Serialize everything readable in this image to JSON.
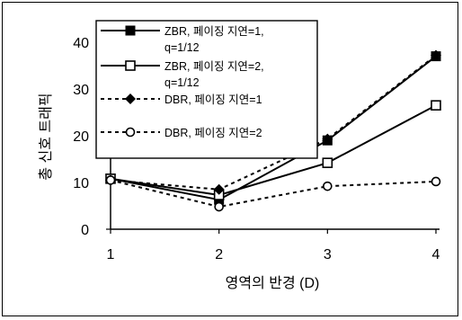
{
  "chart_data": {
    "type": "line",
    "title": "",
    "xlabel": "영역의 반경 (D)",
    "ylabel": "총 신호 트래픽",
    "x": [
      1,
      2,
      3,
      4
    ],
    "xlim": [
      1,
      4
    ],
    "ylim": [
      0,
      40
    ],
    "yticks": [
      0,
      10,
      20,
      30,
      40
    ],
    "xticks": [
      1,
      2,
      3,
      4
    ],
    "grid": false,
    "legend_position": "top-left",
    "series": [
      {
        "name": "ZBR, 페이징 지연=1, q=1/12",
        "name_lines": [
          "ZBR, 페이징 지연=1,",
          "q=1/12"
        ],
        "values": [
          10.8,
          6.3,
          19.0,
          37.0
        ],
        "line": "solid",
        "marker": "filled-square",
        "color": "#000000"
      },
      {
        "name": "ZBR, 페이징 지연=2, q=1/12",
        "name_lines": [
          "ZBR, 페이징 지연=2,",
          "q=1/12"
        ],
        "values": [
          10.8,
          7.3,
          14.2,
          26.5
        ],
        "line": "solid",
        "marker": "open-square",
        "color": "#000000"
      },
      {
        "name": "DBR, 페이징 지연=1",
        "name_lines": [
          "DBR, 페이징 지연=1"
        ],
        "values": [
          10.5,
          8.5,
          19.3,
          37.2
        ],
        "line": "dashed",
        "marker": "filled-diamond",
        "color": "#000000"
      },
      {
        "name": "DBR, 페이징 지연=2",
        "name_lines": [
          "DBR, 페이징 지연=2"
        ],
        "values": [
          10.5,
          4.8,
          9.2,
          10.2
        ],
        "line": "dashed",
        "marker": "open-circle",
        "color": "#000000"
      }
    ]
  }
}
